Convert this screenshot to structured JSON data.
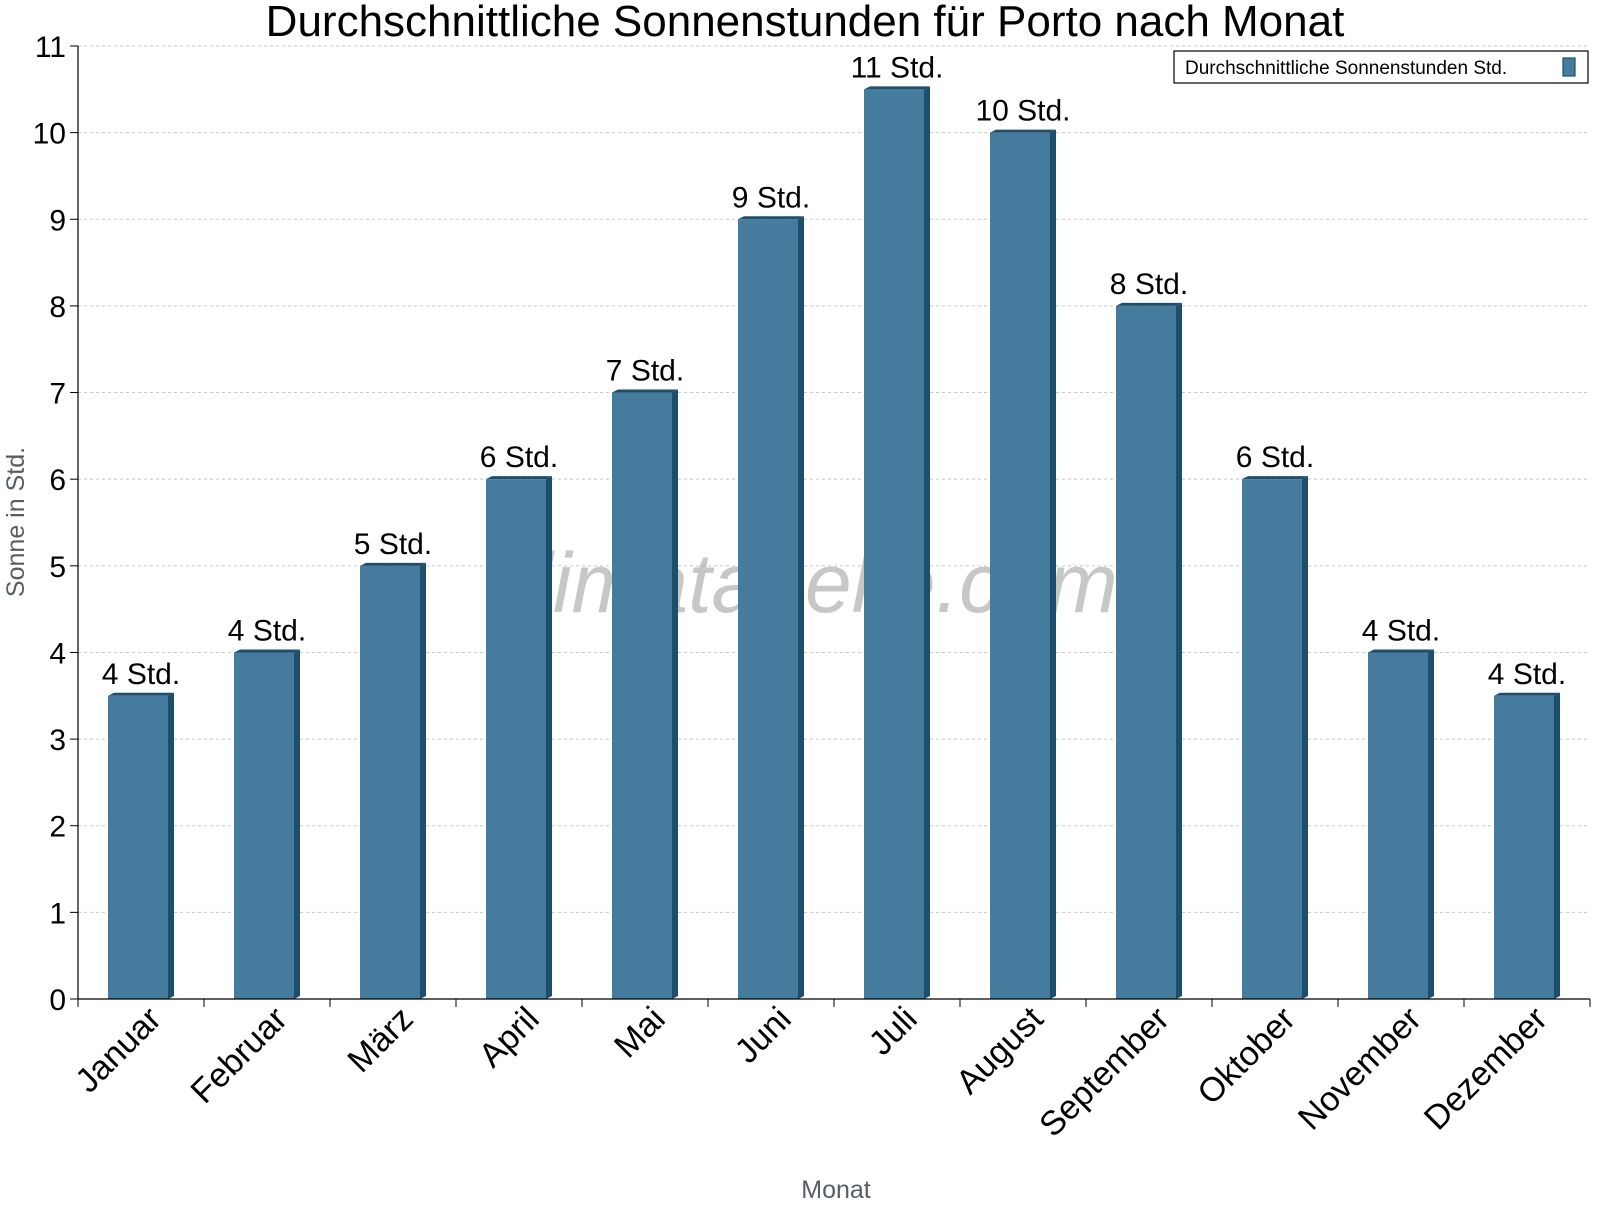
{
  "chart_data": {
    "type": "bar",
    "title": "Durchschnittliche Sonnenstunden für Porto nach Monat",
    "xlabel": "Monat",
    "ylabel": "Sonne in Std.",
    "ylim": [
      0,
      11
    ],
    "yticks": [
      "0",
      "1",
      "2",
      "3",
      "4",
      "5",
      "6",
      "7",
      "8",
      "9",
      "10",
      "11"
    ],
    "grid": true,
    "legend_position": "top-right",
    "categories": [
      "Januar",
      "Februar",
      "März",
      "April",
      "Mai",
      "Juni",
      "Juli",
      "August",
      "September",
      "Oktober",
      "November",
      "Dezember"
    ],
    "series": [
      {
        "name": "Durchschnittliche Sonnenstunden Std.",
        "values": [
          3.5,
          4,
          5,
          6,
          7,
          9,
          10.5,
          10,
          8,
          6,
          4,
          3.5
        ],
        "labels": [
          "4 Std.",
          "4 Std.",
          "5 Std.",
          "6 Std.",
          "7 Std.",
          "9 Std.",
          "11 Std.",
          "10 Std.",
          "8 Std.",
          "6 Std.",
          "4 Std.",
          "4 Std."
        ],
        "color": "#457b9d",
        "side_color": "#1d4e6e"
      }
    ],
    "watermark": "klimatabelle.com"
  }
}
